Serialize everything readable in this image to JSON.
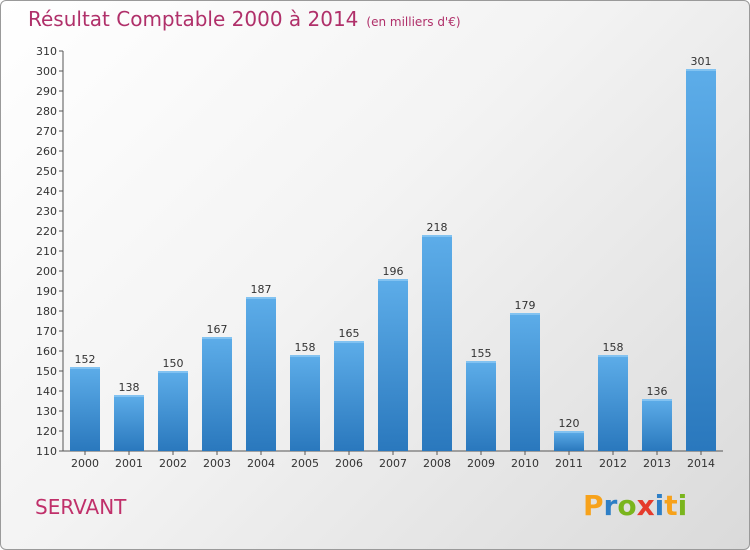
{
  "header": {
    "title": "Résultat Comptable 2000 à 2014",
    "subtitle": "(en milliers d'€)"
  },
  "footer": {
    "commune": "SERVANT",
    "logo": {
      "text": "Proxiti",
      "letters": [
        "P",
        "r",
        "o",
        "x",
        "i",
        "t",
        "i"
      ],
      "colors": [
        "#f7a21b",
        "#2e7fc6",
        "#7ab51d",
        "#e53b2c",
        "#2e7fc6",
        "#f7a21b",
        "#7ab51d"
      ]
    }
  },
  "chart_data": {
    "type": "bar",
    "categories": [
      "2000",
      "2001",
      "2002",
      "2003",
      "2004",
      "2005",
      "2006",
      "2007",
      "2008",
      "2009",
      "2010",
      "2011",
      "2012",
      "2013",
      "2014"
    ],
    "values": [
      152,
      138,
      150,
      167,
      187,
      158,
      165,
      196,
      218,
      155,
      179,
      120,
      158,
      136,
      301
    ],
    "title": "Résultat Comptable 2000 à 2014",
    "xlabel": "",
    "ylabel": "",
    "ylim": [
      110,
      310
    ],
    "ytick_step": 10,
    "grid": false,
    "bar_color": "#3a8fd4"
  }
}
